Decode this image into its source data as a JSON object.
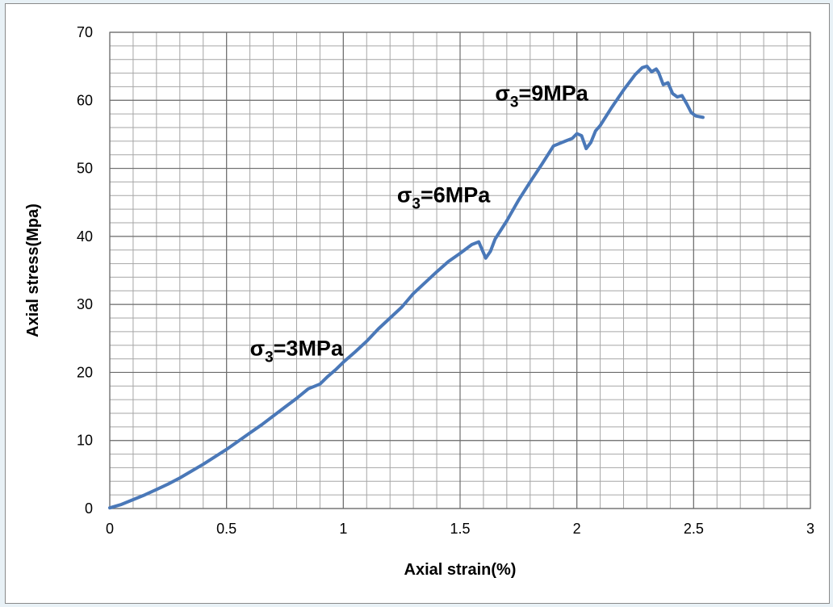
{
  "chart_data": {
    "type": "line",
    "title": "",
    "xlabel": "Axial strain(%)",
    "ylabel": "Axial stress(Mpa)",
    "xlim": [
      0,
      3
    ],
    "ylim": [
      0,
      70
    ],
    "x_ticks": [
      "0",
      "0.5",
      "1",
      "1.5",
      "2",
      "2.5",
      "3"
    ],
    "y_ticks": [
      "0",
      "10",
      "20",
      "30",
      "40",
      "50",
      "60",
      "70"
    ],
    "x_minor_step": 0.1,
    "y_minor_step": 2,
    "grid": true,
    "legend": "none",
    "series": [
      {
        "color": "#4a78b8",
        "x": [
          0.0,
          0.05,
          0.1,
          0.15,
          0.2,
          0.25,
          0.3,
          0.35,
          0.4,
          0.45,
          0.5,
          0.55,
          0.6,
          0.65,
          0.7,
          0.75,
          0.8,
          0.85,
          0.9,
          0.93,
          0.97,
          1.0,
          1.05,
          1.1,
          1.15,
          1.2,
          1.25,
          1.3,
          1.35,
          1.4,
          1.45,
          1.5,
          1.55,
          1.58,
          1.6,
          1.61,
          1.63,
          1.65,
          1.7,
          1.75,
          1.8,
          1.85,
          1.9,
          1.95,
          1.98,
          2.0,
          2.02,
          2.04,
          2.06,
          2.08,
          2.1,
          2.15,
          2.2,
          2.25,
          2.28,
          2.3,
          2.32,
          2.34,
          2.35,
          2.37,
          2.39,
          2.41,
          2.43,
          2.45,
          2.47,
          2.49,
          2.51,
          2.54
        ],
        "y": [
          0.1,
          0.6,
          1.3,
          2.0,
          2.8,
          3.6,
          4.5,
          5.5,
          6.5,
          7.6,
          8.7,
          9.9,
          11.1,
          12.3,
          13.6,
          14.9,
          16.2,
          17.6,
          18.3,
          19.3,
          20.5,
          21.5,
          23.0,
          24.6,
          26.4,
          28.0,
          29.6,
          31.6,
          33.2,
          34.8,
          36.3,
          37.5,
          38.8,
          39.2,
          37.6,
          36.8,
          37.8,
          39.6,
          42.3,
          45.3,
          48.0,
          50.6,
          53.3,
          54.0,
          54.4,
          55.1,
          54.8,
          52.9,
          53.8,
          55.5,
          56.3,
          59.0,
          61.5,
          63.8,
          64.8,
          65.0,
          64.2,
          64.6,
          64.1,
          62.3,
          62.6,
          61.0,
          60.5,
          60.7,
          59.5,
          58.2,
          57.7,
          57.5
        ]
      }
    ],
    "annotations": [
      {
        "base": "σ",
        "sub": "3",
        "text": "=3MPa",
        "x": 0.6,
        "y": 22.5
      },
      {
        "base": "σ",
        "sub": "3",
        "text": "=6MPa",
        "x": 1.23,
        "y": 45.0
      },
      {
        "base": "σ",
        "sub": "3",
        "text": "=9MPa",
        "x": 1.65,
        "y": 60.0
      }
    ]
  }
}
